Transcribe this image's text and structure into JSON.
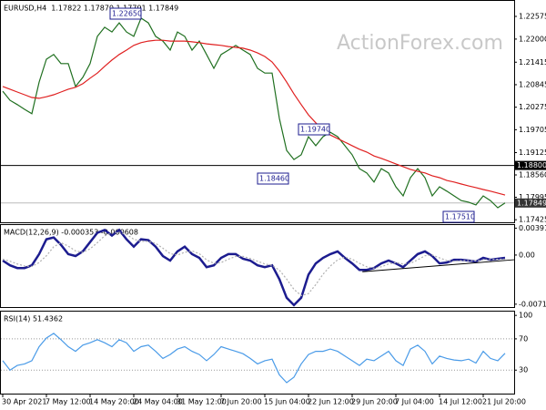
{
  "watermark": "ActionForex.com",
  "chart_data": [
    {
      "type": "line",
      "title": "EURUSD,H4  1.17822 1.17870 1.17791 1.17849",
      "ylim": [
        1.1736,
        1.2299
      ],
      "yticks": [
        1.22575,
        {
          "value": 1.22,
          "label": "1.22000"
        },
        1.21415,
        1.20845,
        1.20275,
        1.19705,
        1.19125,
        {
          "value": 1.1856,
          "label": "1.18560"
        },
        1.17995,
        1.17425
      ],
      "series": [
        {
          "color": "#1f6f1f",
          "values": [
            1.2068,
            1.2045,
            1.2034,
            1.2022,
            1.2011,
            1.2091,
            1.2149,
            1.2161,
            1.2138,
            1.2138,
            1.208,
            1.2103,
            1.2138,
            1.2207,
            1.223,
            1.2218,
            1.2241,
            1.2218,
            1.2207,
            1.2253,
            1.2241,
            1.2207,
            1.2195,
            1.2172,
            1.2218,
            1.2207,
            1.2172,
            1.2195,
            1.2161,
            1.2126,
            1.2161,
            1.2172,
            1.2184,
            1.2172,
            1.2161,
            1.2126,
            1.2114,
            1.2114,
            1.1999,
            1.1918,
            1.1895,
            1.1907,
            1.1953,
            1.193,
            1.1953,
            1.1964,
            1.1953,
            1.193,
            1.1907,
            1.1872,
            1.1861,
            1.1838,
            1.1872,
            1.1861,
            1.1826,
            1.1803,
            1.1849,
            1.1872,
            1.1849,
            1.1803,
            1.1826,
            1.1815,
            1.1803,
            1.1791,
            1.1787,
            1.178,
            1.1803,
            1.1791,
            1.1773,
            1.1785
          ]
        },
        {
          "color": "#e02020",
          "values": [
            1.208,
            1.2073,
            1.2066,
            1.2059,
            1.2052,
            1.205,
            1.2054,
            1.2059,
            1.2066,
            1.2073,
            1.2078,
            1.2087,
            1.2101,
            1.2114,
            1.2131,
            1.2147,
            1.2161,
            1.2172,
            1.2184,
            1.2191,
            1.2195,
            1.2197,
            1.2197,
            1.2195,
            1.2195,
            1.2195,
            1.2193,
            1.2191,
            1.2188,
            1.2186,
            1.2184,
            1.2181,
            1.2179,
            1.2177,
            1.2172,
            1.2165,
            1.2156,
            1.2142,
            1.2119,
            1.2091,
            1.2061,
            1.2034,
            1.2008,
            1.1988,
            1.1971,
            1.1957,
            1.1948,
            1.1939,
            1.193,
            1.1921,
            1.1914,
            1.1904,
            1.1898,
            1.1891,
            1.1884,
            1.1877,
            1.187,
            1.1865,
            1.1861,
            1.1854,
            1.1849,
            1.1842,
            1.1838,
            1.1833,
            1.1828,
            1.1824,
            1.1819,
            1.1815,
            1.181,
            1.1805
          ]
        }
      ],
      "hline": {
        "value": 1.188,
        "label": "1.18800"
      },
      "last_price": {
        "value": 1.17849,
        "label": "1.17849"
      },
      "annotations": [
        "1.22650",
        "1.19740",
        "1.18460",
        "1.17510"
      ]
    },
    {
      "type": "line",
      "title": "MACD(12,26,9) -0.000353 -0.000608",
      "ylim": [
        -0.0077,
        0.0045
      ],
      "yticks": [
        0.003917,
        {
          "value": 0,
          "label": "0.00"
        },
        -0.007152
      ],
      "series": [
        {
          "color": "#1c1c8f",
          "values": [
            -0.00081,
            -0.00149,
            -0.00189,
            -0.00189,
            -0.00149,
            0.00014,
            0.0023,
            0.00257,
            0.00149,
            0.00014,
            -0.00014,
            0.00054,
            0.00189,
            0.00324,
            0.00365,
            0.00284,
            0.00365,
            0.0023,
            0.00122,
            0.0023,
            0.00216,
            0.00122,
            -0.00014,
            -0.00081,
            0.00054,
            0.00122,
            0.00014,
            -0.00041,
            -0.00176,
            -0.00149,
            -0.00041,
            0.00014,
            0.00014,
            -0.00054,
            -0.00081,
            -0.00149,
            -0.00176,
            -0.00149,
            -0.00351,
            -0.00621,
            -0.00729,
            -0.00621,
            -0.00284,
            -0.00122,
            -0.00041,
            0.00014,
            0.00054,
            -0.00041,
            -0.00122,
            -0.00216,
            -0.00216,
            -0.00189,
            -0.00122,
            -0.00081,
            -0.00122,
            -0.00176,
            -0.00081,
            0.00014,
            0.00054,
            -0.00014,
            -0.00122,
            -0.00108,
            -0.00068,
            -0.00068,
            -0.00081,
            -0.00095,
            -0.00041,
            -0.00068,
            -0.00054,
            -0.00041
          ]
        },
        {
          "color": "#b0b0b0",
          "dashed": true,
          "values": [
            -0.0006,
            -0.0009,
            -0.0013,
            -0.0016,
            -0.00165,
            -0.0011,
            -0.0001,
            0.0012,
            0.0018,
            0.0013,
            0.0006,
            0.0004,
            0.0009,
            0.0018,
            0.0028,
            0.0032,
            0.0033,
            0.003,
            0.0023,
            0.002,
            0.002,
            0.0017,
            0.001,
            0.0002,
            0.0,
            0.0004,
            0.0006,
            0.0002,
            -0.0007,
            -0.0012,
            -0.0011,
            -0.0006,
            -0.0002,
            -0.0002,
            -0.0005,
            -0.0009,
            -0.0013,
            -0.0015,
            -0.0022,
            -0.0035,
            -0.005,
            -0.0059,
            -0.0056,
            -0.0043,
            -0.0028,
            -0.0016,
            -0.0007,
            -0.0003,
            -0.0006,
            -0.0012,
            -0.0017,
            -0.0019,
            -0.0017,
            -0.0013,
            -0.0011,
            -0.0013,
            -0.0012,
            -0.0007,
            -0.0001,
            0.0,
            -0.0004,
            -0.0008,
            -0.0009,
            -0.0008,
            -0.0008,
            -0.00085,
            -0.0007,
            -0.00065,
            -0.0006,
            -0.00061
          ]
        }
      ],
      "trendline": {
        "x": [
          49.4,
          70.25
        ],
        "values": [
          -0.00243,
          -0.00068
        ]
      }
    },
    {
      "type": "line",
      "title": "RSI(14) 51.4362",
      "ylim": [
        0,
        106
      ],
      "yticks": [
        100,
        70,
        30
      ],
      "levels": [
        70,
        30
      ],
      "series": [
        {
          "color": "#4a9be8",
          "values": [
            42,
            30,
            36,
            38,
            42,
            60,
            71,
            77,
            69,
            60,
            54,
            62,
            65,
            69,
            65,
            60,
            69,
            65,
            54,
            60,
            62,
            54,
            45,
            50,
            57,
            60,
            54,
            50,
            42,
            50,
            60,
            57,
            54,
            51,
            45,
            38,
            42,
            44,
            24,
            14,
            21,
            38,
            50,
            54,
            54,
            57,
            54,
            48,
            42,
            36,
            44,
            42,
            48,
            54,
            42,
            36,
            57,
            62,
            54,
            38,
            48,
            45,
            43,
            42,
            44,
            39,
            54,
            45,
            42,
            51.4362
          ]
        }
      ],
      "categories": [
        "30 Apr 2021",
        null,
        null,
        null,
        null,
        null,
        "7 May 12:00",
        null,
        null,
        null,
        null,
        null,
        "14 May 20:00",
        null,
        null,
        null,
        null,
        null,
        "24 May 04:00",
        null,
        null,
        null,
        null,
        null,
        "31 May 12:00",
        null,
        null,
        null,
        null,
        null,
        "7 Jun 20:00",
        null,
        null,
        null,
        null,
        null,
        "15 Jun 04:00",
        null,
        null,
        null,
        null,
        null,
        "22 Jun 12:00",
        null,
        null,
        null,
        null,
        null,
        "29 Jun 20:00",
        null,
        null,
        null,
        null,
        null,
        "7 Jul 04:00",
        null,
        null,
        null,
        null,
        null,
        "14 Jul 12:00",
        null,
        null,
        null,
        null,
        null,
        "21 Jul 20:00",
        null,
        null,
        null
      ]
    }
  ]
}
